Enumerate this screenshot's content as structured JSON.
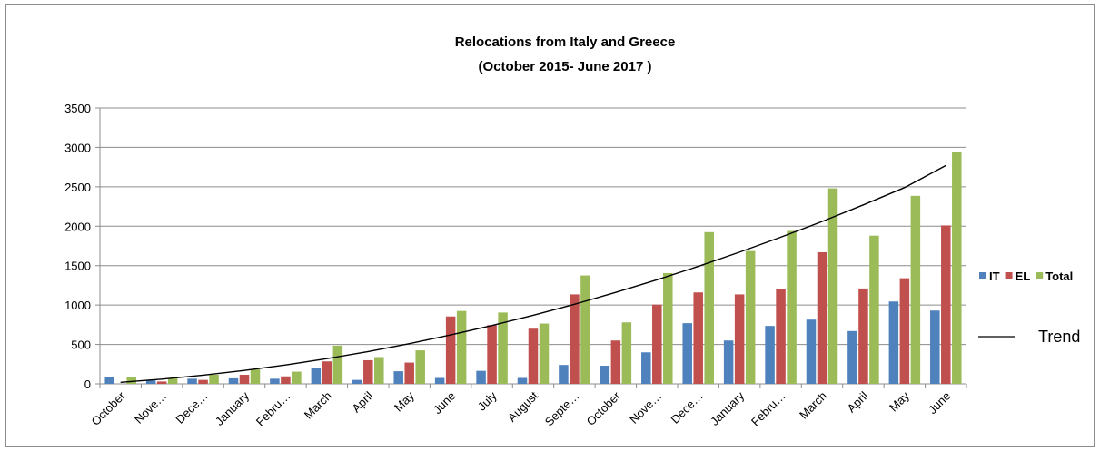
{
  "chart_data": {
    "type": "bar",
    "title": "Relocations from Italy and Greece",
    "subtitle": "(October 2015- June 2017 )",
    "categories": [
      "October",
      "Nove…",
      "Dece…",
      "January",
      "Febru…",
      "March",
      "April",
      "May",
      "June",
      "July",
      "August",
      "Septe…",
      "October",
      "Nove…",
      "Dece…",
      "January",
      "Febru…",
      "March",
      "April",
      "May",
      "June"
    ],
    "series": [
      {
        "name": "IT",
        "color": "#4f81bd",
        "values": [
          90,
          45,
          65,
          70,
          65,
          200,
          50,
          160,
          75,
          165,
          75,
          240,
          230,
          400,
          770,
          550,
          735,
          815,
          670,
          1045,
          930
        ]
      },
      {
        "name": "EL",
        "color": "#c0504d",
        "values": [
          0,
          30,
          50,
          115,
          95,
          285,
          300,
          270,
          855,
          745,
          700,
          1135,
          550,
          1005,
          1160,
          1135,
          1205,
          1670,
          1210,
          1340,
          2010
        ]
      },
      {
        "name": "Total",
        "color": "#9bbb59",
        "values": [
          90,
          75,
          115,
          185,
          155,
          485,
          340,
          425,
          925,
          905,
          765,
          1375,
          780,
          1405,
          1925,
          1685,
          1940,
          2480,
          1880,
          2385,
          2940
        ]
      }
    ],
    "trend": {
      "label": "Trend",
      "values": [
        20,
        60,
        110,
        170,
        240,
        320,
        410,
        510,
        620,
        740,
        870,
        1010,
        1160,
        1320,
        1490,
        1670,
        1860,
        2060,
        2270,
        2490,
        2770
      ]
    },
    "y_ticks": [
      "0",
      "500",
      "1000",
      "1500",
      "2000",
      "2500",
      "3000",
      "3500"
    ],
    "ylim": [
      0,
      3500
    ],
    "grid": true,
    "legend_position": "right"
  }
}
